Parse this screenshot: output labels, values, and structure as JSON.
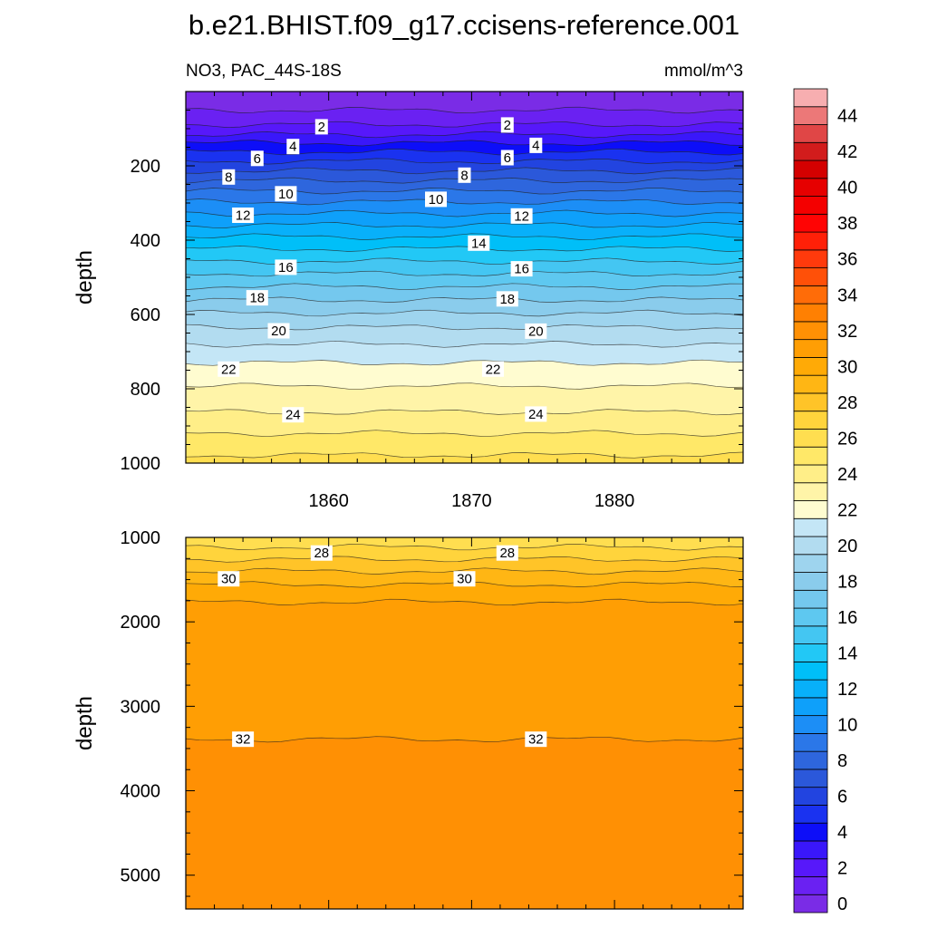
{
  "figure": {
    "title": "b.e21.BHIST.f09_g17.ccisens-reference.001",
    "subtitle_left": "NO3, PAC_44S-18S",
    "units": "mmol/m^3"
  },
  "chart_data": [
    {
      "type": "heatmap",
      "subtype": "filled-contour",
      "panel": "upper",
      "xlabel": "",
      "ylabel": "depth",
      "xlim": [
        1850,
        1889
      ],
      "ylim": [
        1000,
        0
      ],
      "y_reversed": true,
      "x_ticks": [
        1860,
        1870,
        1880
      ],
      "y_ticks": [
        200,
        400,
        600,
        800,
        1000
      ],
      "profile": {
        "depth": [
          0,
          50,
          100,
          150,
          200,
          250,
          300,
          350,
          400,
          450,
          500,
          550,
          600,
          650,
          700,
          750,
          800,
          850,
          900,
          950,
          1000
        ],
        "value": [
          0.0,
          1.0,
          2.3,
          4.5,
          6.5,
          8.4,
          10.1,
          11.7,
          13.3,
          14.8,
          16.3,
          17.7,
          19.1,
          20.4,
          21.4,
          22.4,
          23.1,
          23.8,
          24.6,
          25.6,
          26.3
        ]
      },
      "contour_levels": [
        1,
        2,
        3,
        4,
        5,
        6,
        7,
        8,
        9,
        10,
        11,
        12,
        13,
        14,
        15,
        16,
        17,
        18,
        19,
        20,
        21,
        22,
        23,
        24,
        25,
        26
      ],
      "contour_labels": [
        {
          "text": "2",
          "year": 1859.5,
          "depth": 95
        },
        {
          "text": "2",
          "year": 1872.5,
          "depth": 90
        },
        {
          "text": "4",
          "year": 1857.5,
          "depth": 148
        },
        {
          "text": "4",
          "year": 1874.5,
          "depth": 145
        },
        {
          "text": "6",
          "year": 1855.0,
          "depth": 180
        },
        {
          "text": "6",
          "year": 1872.5,
          "depth": 178
        },
        {
          "text": "8",
          "year": 1853.0,
          "depth": 230
        },
        {
          "text": "8",
          "year": 1869.5,
          "depth": 225
        },
        {
          "text": "10",
          "year": 1857.0,
          "depth": 275
        },
        {
          "text": "10",
          "year": 1867.5,
          "depth": 290
        },
        {
          "text": "12",
          "year": 1854.0,
          "depth": 333
        },
        {
          "text": "12",
          "year": 1873.5,
          "depth": 335
        },
        {
          "text": "14",
          "year": 1870.5,
          "depth": 408
        },
        {
          "text": "16",
          "year": 1857.0,
          "depth": 473
        },
        {
          "text": "16",
          "year": 1873.5,
          "depth": 477
        },
        {
          "text": "18",
          "year": 1855.0,
          "depth": 555
        },
        {
          "text": "18",
          "year": 1872.5,
          "depth": 558
        },
        {
          "text": "20",
          "year": 1856.5,
          "depth": 644
        },
        {
          "text": "20",
          "year": 1874.5,
          "depth": 645
        },
        {
          "text": "22",
          "year": 1853.0,
          "depth": 747
        },
        {
          "text": "22",
          "year": 1871.5,
          "depth": 747
        },
        {
          "text": "24",
          "year": 1857.5,
          "depth": 870
        },
        {
          "text": "24",
          "year": 1874.5,
          "depth": 868
        }
      ]
    },
    {
      "type": "heatmap",
      "subtype": "filled-contour",
      "panel": "lower",
      "xlabel": "",
      "ylabel": "depth",
      "xlim": [
        1850,
        1889
      ],
      "ylim": [
        5400,
        1000
      ],
      "y_reversed": true,
      "y_ticks": [
        1000,
        2000,
        3000,
        4000,
        5000
      ],
      "profile": {
        "depth": [
          1000,
          1100,
          1200,
          1300,
          1400,
          1500,
          1600,
          1700,
          1800,
          2000,
          2500,
          3000,
          3390,
          3500,
          4000,
          5400
        ],
        "value": [
          26.3,
          26.9,
          27.6,
          28.3,
          29.0,
          29.6,
          30.3,
          30.8,
          31.1,
          31.3,
          31.5,
          31.8,
          32.0,
          32.1,
          32.3,
          32.6
        ]
      },
      "contour_levels": [
        27,
        28,
        29,
        30,
        31,
        32
      ],
      "contour_labels": [
        {
          "text": "28",
          "year": 1859.5,
          "depth": 1185
        },
        {
          "text": "28",
          "year": 1872.5,
          "depth": 1185
        },
        {
          "text": "30",
          "year": 1853.0,
          "depth": 1490
        },
        {
          "text": "30",
          "year": 1869.5,
          "depth": 1490
        },
        {
          "text": "32",
          "year": 1854.0,
          "depth": 3390
        },
        {
          "text": "32",
          "year": 1874.5,
          "depth": 3390
        }
      ]
    }
  ],
  "colorbar": {
    "levels": [
      0,
      1,
      2,
      3,
      4,
      5,
      6,
      7,
      8,
      9,
      10,
      11,
      12,
      13,
      14,
      15,
      16,
      17,
      18,
      19,
      20,
      21,
      22,
      23,
      24,
      25,
      26,
      27,
      28,
      29,
      30,
      31,
      32,
      33,
      34,
      35,
      36,
      37,
      38,
      39,
      40,
      41,
      42,
      43,
      44,
      45
    ],
    "colors": [
      "#7a2ce6",
      "#6a21f2",
      "#5718fa",
      "#3a17fa",
      "#0d0ef8",
      "#1a32f0",
      "#2244e0",
      "#2b58da",
      "#2e66dd",
      "#2b77e8",
      "#1c8ef6",
      "#0ea0fa",
      "#08b0fa",
      "#00bff8",
      "#22c8f6",
      "#44c6f2",
      "#5ec8f0",
      "#74c8ee",
      "#8accec",
      "#9ed4ee",
      "#b2dcf0",
      "#c4e6f6",
      "#fffcd0",
      "#fff4a8",
      "#ffee88",
      "#ffe868",
      "#ffde50",
      "#ffd43c",
      "#ffc428",
      "#ffb614",
      "#ffaa06",
      "#ff9e04",
      "#ff9004",
      "#ff8002",
      "#ff6c08",
      "#ff5008",
      "#ff3a0c",
      "#ff2008",
      "#ff0404",
      "#f40000",
      "#e60000",
      "#d40000",
      "#d21c1c",
      "#e04646",
      "#ec7878",
      "#f7aeb0"
    ],
    "tick_labels": [
      0,
      2,
      4,
      6,
      8,
      10,
      12,
      14,
      16,
      18,
      20,
      22,
      24,
      26,
      28,
      30,
      32,
      34,
      36,
      38,
      40,
      42,
      44
    ]
  }
}
